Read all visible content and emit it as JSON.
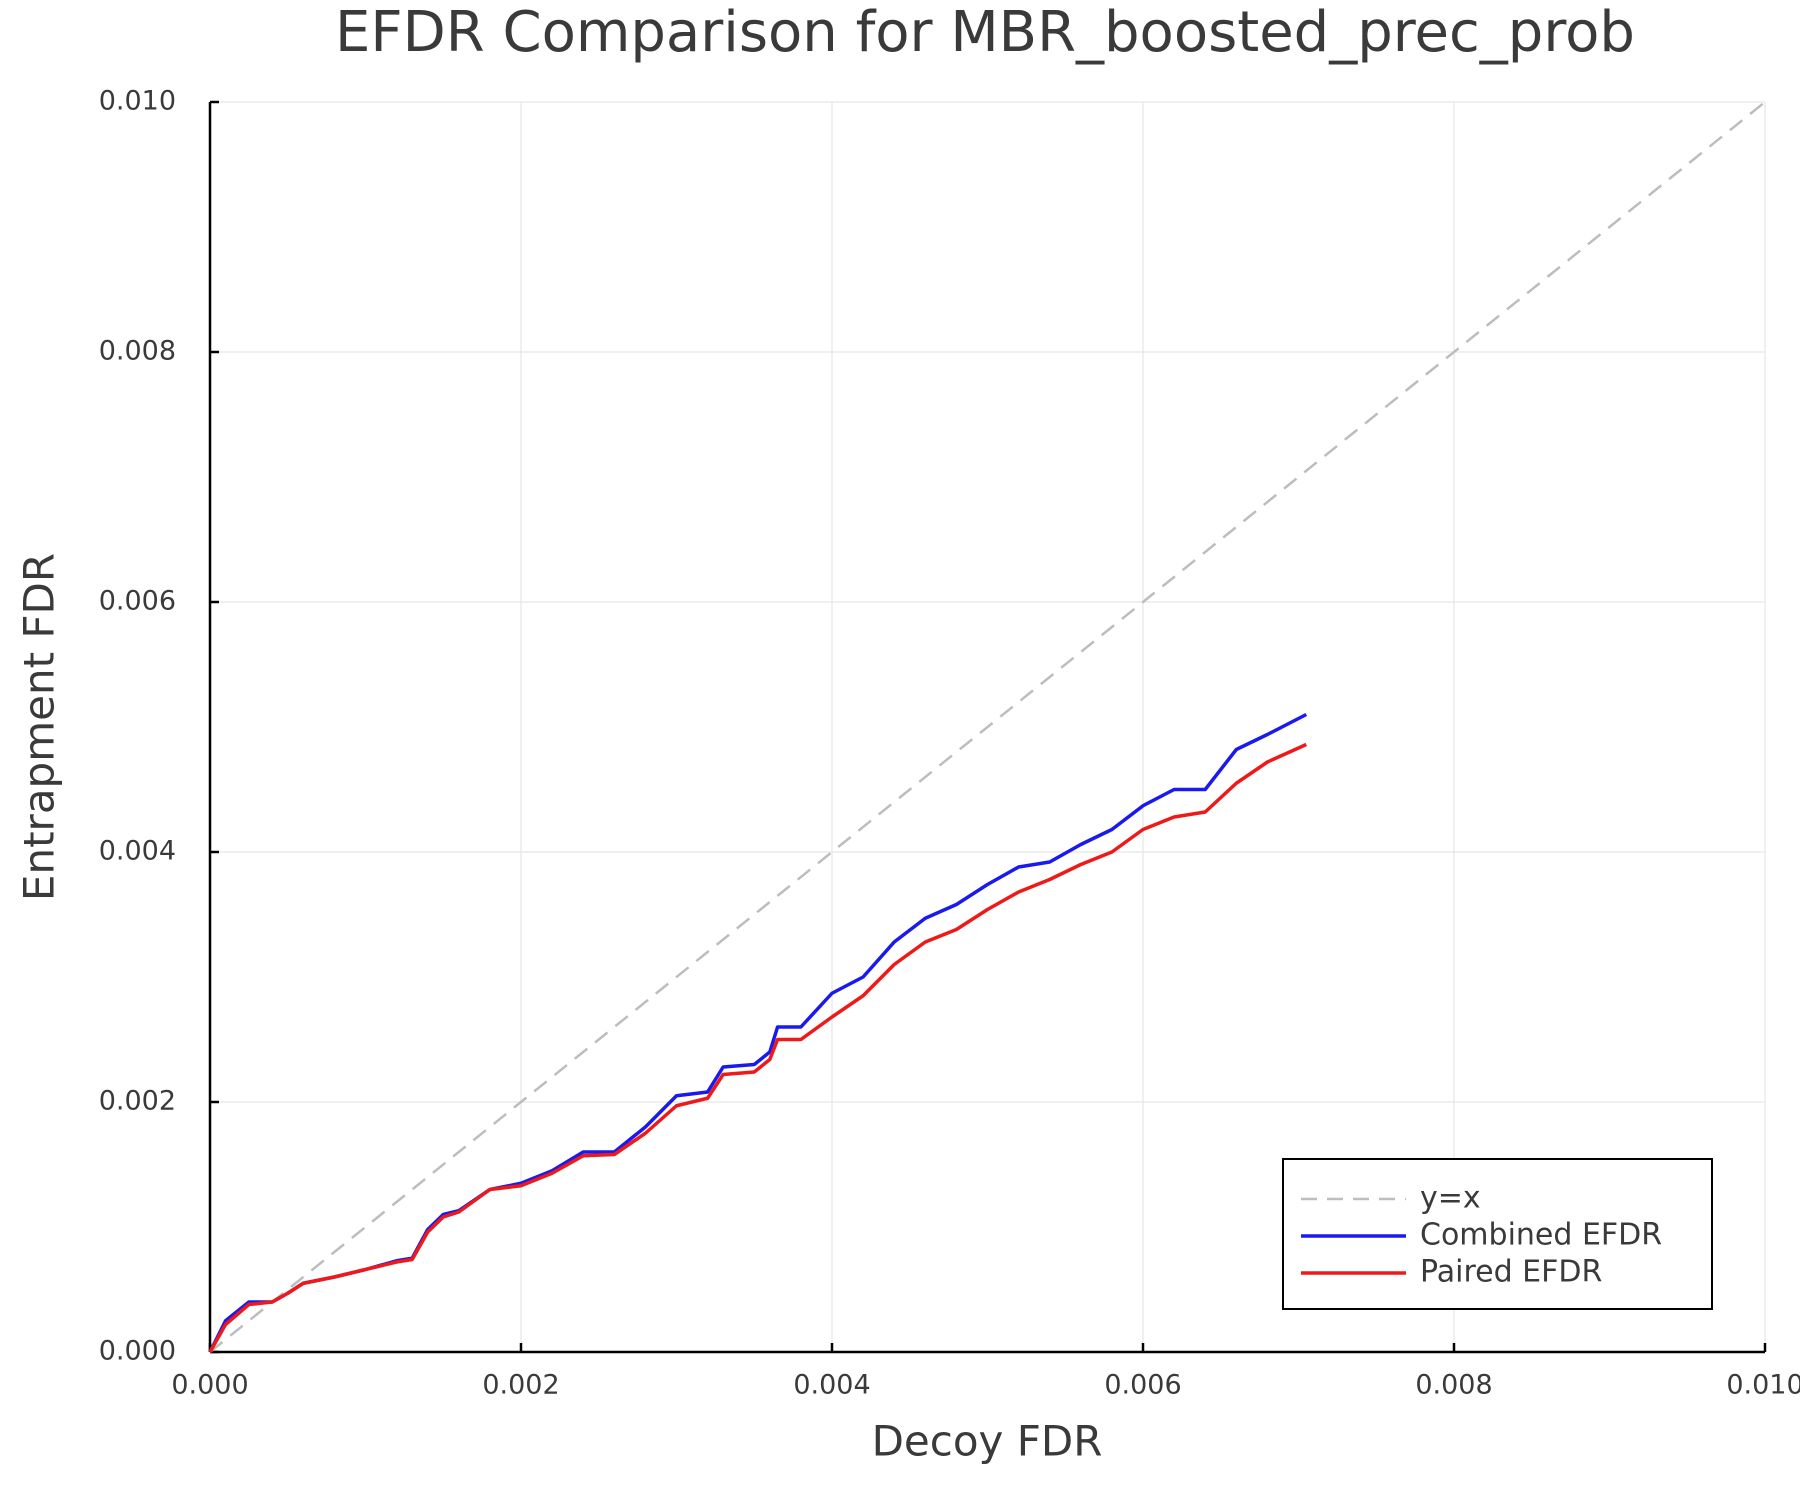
{
  "chart_data": {
    "type": "line",
    "title": "EFDR Comparison for MBR_boosted_prec_prob",
    "x_label": "Decoy FDR",
    "y_label": "Entrapment FDR",
    "xlim": [
      0,
      0.01
    ],
    "ylim": [
      0,
      0.01
    ],
    "xticks": [
      {
        "value": 0,
        "label": "0.000"
      },
      {
        "value": 0.002,
        "label": "0.002"
      },
      {
        "value": 0.004,
        "label": "0.004"
      },
      {
        "value": 0.006,
        "label": "0.006"
      },
      {
        "value": 0.008,
        "label": "0.008"
      },
      {
        "value": 0.01,
        "label": "0.010"
      }
    ],
    "yticks": [
      {
        "value": 0,
        "label": "0.000"
      },
      {
        "value": 0.002,
        "label": "0.002"
      },
      {
        "value": 0.004,
        "label": "0.004"
      },
      {
        "value": 0.006,
        "label": "0.006"
      },
      {
        "value": 0.008,
        "label": "0.008"
      },
      {
        "value": 0.01,
        "label": "0.010"
      }
    ],
    "grid": true,
    "legend_position": "lower right",
    "series": [
      {
        "name": "y=x",
        "color": "#bdbdbd",
        "style": "dashed",
        "x": [
          0,
          0.01
        ],
        "values": [
          0,
          0.01
        ]
      },
      {
        "name": "Combined EFDR",
        "color": "#1a1aee",
        "style": "solid",
        "x": [
          0,
          0.0001,
          0.00025,
          0.0004,
          0.0005,
          0.0006,
          0.0008,
          0.001,
          0.0012,
          0.0013,
          0.0014,
          0.0015,
          0.0016,
          0.0018,
          0.002,
          0.0022,
          0.0024,
          0.0026,
          0.0028,
          0.003,
          0.0032,
          0.0033,
          0.0035,
          0.0036,
          0.00365,
          0.0038,
          0.004,
          0.0042,
          0.0044,
          0.0046,
          0.0048,
          0.005,
          0.0052,
          0.0054,
          0.0056,
          0.0058,
          0.006,
          0.0062,
          0.0064,
          0.0066,
          0.0068,
          0.00705
        ],
        "values": [
          0,
          0.00025,
          0.0004,
          0.0004,
          0.00047,
          0.00055,
          0.0006,
          0.00066,
          0.00073,
          0.00075,
          0.00098,
          0.0011,
          0.00113,
          0.0013,
          0.00135,
          0.00145,
          0.0016,
          0.0016,
          0.0018,
          0.00205,
          0.00208,
          0.00228,
          0.0023,
          0.0024,
          0.0026,
          0.0026,
          0.00287,
          0.003,
          0.00328,
          0.00347,
          0.00358,
          0.00374,
          0.00388,
          0.00392,
          0.00406,
          0.00418,
          0.00437,
          0.0045,
          0.0045,
          0.00482,
          0.00494,
          0.0051
        ]
      },
      {
        "name": "Paired EFDR",
        "color": "#ee1a1a",
        "style": "solid",
        "x": [
          0,
          0.0001,
          0.00025,
          0.0004,
          0.0005,
          0.0006,
          0.0008,
          0.001,
          0.0012,
          0.0013,
          0.0014,
          0.0015,
          0.0016,
          0.0018,
          0.002,
          0.0022,
          0.0024,
          0.0026,
          0.0028,
          0.003,
          0.0032,
          0.0033,
          0.0035,
          0.0036,
          0.00365,
          0.0038,
          0.004,
          0.0042,
          0.0044,
          0.0046,
          0.0048,
          0.005,
          0.0052,
          0.0054,
          0.0056,
          0.0058,
          0.006,
          0.0062,
          0.0064,
          0.0066,
          0.0068,
          0.00705
        ],
        "values": [
          0,
          0.00022,
          0.00038,
          0.0004,
          0.00047,
          0.00055,
          0.0006,
          0.00066,
          0.00072,
          0.00074,
          0.00096,
          0.00108,
          0.00112,
          0.0013,
          0.00133,
          0.00143,
          0.00157,
          0.00158,
          0.00175,
          0.00197,
          0.00203,
          0.00222,
          0.00224,
          0.00234,
          0.0025,
          0.0025,
          0.00268,
          0.00285,
          0.0031,
          0.00328,
          0.00338,
          0.00354,
          0.00368,
          0.00378,
          0.0039,
          0.004,
          0.00418,
          0.00428,
          0.00432,
          0.00455,
          0.00472,
          0.00486
        ]
      }
    ]
  }
}
